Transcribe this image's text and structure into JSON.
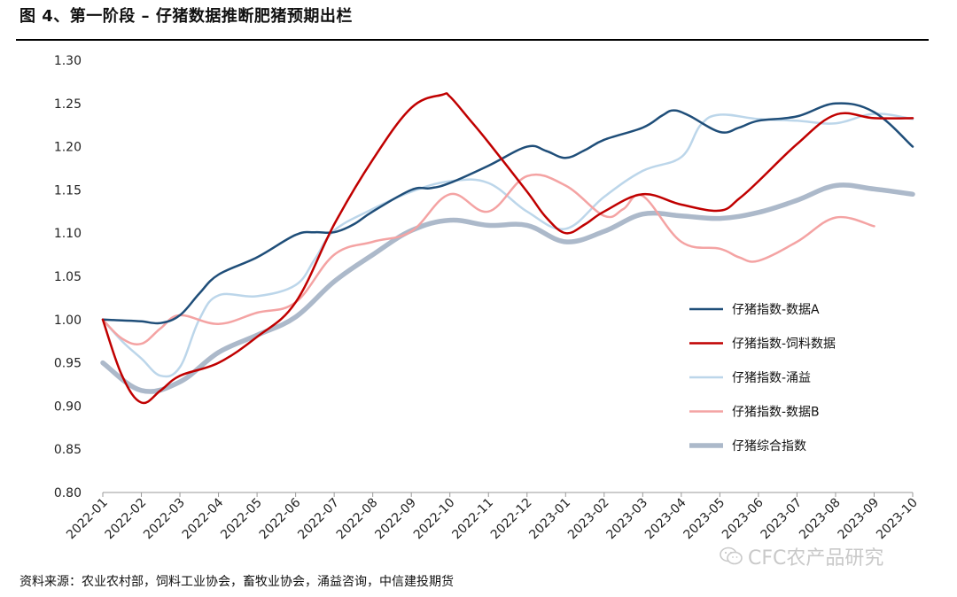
{
  "header": {
    "title": "图 4、第一阶段 – 仔猪数据推断肥猪预期出栏"
  },
  "footer": {
    "source": "资料来源：农业农村部，饲料工业协会，畜牧业协会，涌益咨询，中信建投期货"
  },
  "watermark": {
    "text": "CFC农产品研究",
    "icon": "wechat-icon"
  },
  "chart_data": {
    "type": "line",
    "title": "",
    "xlabel": "",
    "ylabel": "",
    "ylim": [
      0.8,
      1.3
    ],
    "yticks": [
      "0.80",
      "0.85",
      "0.90",
      "0.95",
      "1.00",
      "1.05",
      "1.10",
      "1.15",
      "1.20",
      "1.25",
      "1.30"
    ],
    "categories": [
      "2022-01",
      "2022-02",
      "2022-03",
      "2022-04",
      "2022-05",
      "2022-06",
      "2022-07",
      "2022-08",
      "2022-09",
      "2022-10",
      "2022-11",
      "2022-12",
      "2023-01",
      "2023-02",
      "2023-03",
      "2023-04",
      "2023-05",
      "2023-06",
      "2023-07",
      "2023-08",
      "2023-09",
      "2023-10"
    ],
    "grid": false,
    "legend_position": "right",
    "series": [
      {
        "name": "仔猪指数-数据A",
        "color": "#1f4e79",
        "width": 2.5,
        "points": [
          [
            0,
            1.0
          ],
          [
            0.5,
            0.999
          ],
          [
            1,
            0.998
          ],
          [
            1.5,
            0.996
          ],
          [
            2,
            1.005
          ],
          [
            2.5,
            1.03
          ],
          [
            3,
            1.052
          ],
          [
            4,
            1.072
          ],
          [
            5,
            1.098
          ],
          [
            5.5,
            1.101
          ],
          [
            6,
            1.101
          ],
          [
            6.5,
            1.11
          ],
          [
            7,
            1.125
          ],
          [
            8,
            1.15
          ],
          [
            8.5,
            1.152
          ],
          [
            9,
            1.158
          ],
          [
            10,
            1.178
          ],
          [
            11,
            1.2
          ],
          [
            11.5,
            1.195
          ],
          [
            12,
            1.187
          ],
          [
            12.5,
            1.196
          ],
          [
            13,
            1.208
          ],
          [
            14,
            1.222
          ],
          [
            14.5,
            1.236
          ],
          [
            14.8,
            1.242
          ],
          [
            15.2,
            1.236
          ],
          [
            16,
            1.217
          ],
          [
            16.5,
            1.222
          ],
          [
            17,
            1.23
          ],
          [
            18,
            1.235
          ],
          [
            19,
            1.25
          ],
          [
            20,
            1.24
          ],
          [
            21,
            1.2
          ]
        ]
      },
      {
        "name": "仔猪指数-饲料数据",
        "color": "#c00000",
        "width": 2.5,
        "points": [
          [
            0,
            1.0
          ],
          [
            0.5,
            0.935
          ],
          [
            1,
            0.904
          ],
          [
            1.5,
            0.918
          ],
          [
            2,
            0.935
          ],
          [
            3,
            0.95
          ],
          [
            4,
            0.98
          ],
          [
            5,
            1.02
          ],
          [
            6,
            1.11
          ],
          [
            7,
            1.185
          ],
          [
            8,
            1.245
          ],
          [
            8.8,
            1.26
          ],
          [
            9,
            1.258
          ],
          [
            9.5,
            1.232
          ],
          [
            10,
            1.205
          ],
          [
            11,
            1.148
          ],
          [
            11.5,
            1.118
          ],
          [
            12,
            1.1
          ],
          [
            12.5,
            1.11
          ],
          [
            13,
            1.125
          ],
          [
            14,
            1.145
          ],
          [
            15,
            1.133
          ],
          [
            16,
            1.126
          ],
          [
            16.5,
            1.14
          ],
          [
            17,
            1.16
          ],
          [
            18,
            1.203
          ],
          [
            19,
            1.237
          ],
          [
            20,
            1.233
          ],
          [
            21,
            1.233
          ]
        ]
      },
      {
        "name": "仔猪指数-涌益",
        "color": "#bcd6ea",
        "width": 2.5,
        "points": [
          [
            0,
            1.0
          ],
          [
            0.5,
            0.975
          ],
          [
            1,
            0.955
          ],
          [
            1.5,
            0.935
          ],
          [
            2,
            0.945
          ],
          [
            2.5,
            1.0
          ],
          [
            3,
            1.028
          ],
          [
            4,
            1.027
          ],
          [
            5,
            1.04
          ],
          [
            5.5,
            1.07
          ],
          [
            6,
            1.103
          ],
          [
            7,
            1.128
          ],
          [
            8,
            1.148
          ],
          [
            9,
            1.16
          ],
          [
            10,
            1.158
          ],
          [
            11,
            1.125
          ],
          [
            12,
            1.105
          ],
          [
            13,
            1.142
          ],
          [
            14,
            1.172
          ],
          [
            15,
            1.188
          ],
          [
            15.5,
            1.225
          ],
          [
            16,
            1.237
          ],
          [
            17,
            1.232
          ],
          [
            18,
            1.23
          ],
          [
            19,
            1.227
          ],
          [
            20,
            1.238
          ],
          [
            21,
            1.232
          ]
        ]
      },
      {
        "name": "仔猪指数-数据B",
        "color": "#f4a3a3",
        "width": 2.5,
        "points": [
          [
            0,
            1.0
          ],
          [
            0.5,
            0.978
          ],
          [
            1,
            0.972
          ],
          [
            1.5,
            0.99
          ],
          [
            2,
            1.005
          ],
          [
            3,
            0.995
          ],
          [
            4,
            1.008
          ],
          [
            5,
            1.02
          ],
          [
            6,
            1.075
          ],
          [
            7,
            1.09
          ],
          [
            8,
            1.102
          ],
          [
            9,
            1.145
          ],
          [
            10,
            1.125
          ],
          [
            11,
            1.166
          ],
          [
            12,
            1.155
          ],
          [
            13,
            1.12
          ],
          [
            13.5,
            1.128
          ],
          [
            14,
            1.143
          ],
          [
            15,
            1.09
          ],
          [
            16,
            1.082
          ],
          [
            16.5,
            1.072
          ],
          [
            17,
            1.068
          ],
          [
            18,
            1.09
          ],
          [
            19,
            1.118
          ],
          [
            20,
            1.108
          ]
        ]
      },
      {
        "name": "仔猪综合指数",
        "color": "#acb9ca",
        "width": 5.5,
        "points": [
          [
            0,
            0.95
          ],
          [
            1,
            0.918
          ],
          [
            2,
            0.928
          ],
          [
            3,
            0.962
          ],
          [
            4,
            0.982
          ],
          [
            5,
            1.003
          ],
          [
            6,
            1.044
          ],
          [
            7,
            1.075
          ],
          [
            8,
            1.103
          ],
          [
            9,
            1.115
          ],
          [
            10,
            1.109
          ],
          [
            11,
            1.109
          ],
          [
            12,
            1.09
          ],
          [
            13,
            1.102
          ],
          [
            14,
            1.122
          ],
          [
            15,
            1.12
          ],
          [
            16,
            1.117
          ],
          [
            17,
            1.124
          ],
          [
            18,
            1.138
          ],
          [
            19,
            1.155
          ],
          [
            20,
            1.151
          ],
          [
            21,
            1.145
          ]
        ]
      }
    ]
  }
}
